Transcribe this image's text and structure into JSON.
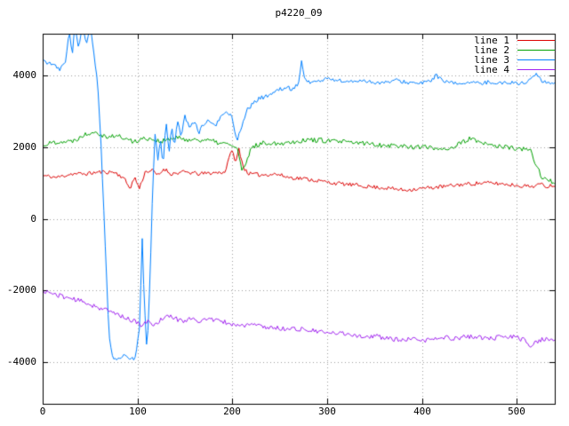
{
  "chart_data": {
    "type": "line",
    "title": "p4220_09",
    "xlabel": "",
    "ylabel": "",
    "xlim": [
      0,
      540
    ],
    "ylim": [
      -5150,
      5150
    ],
    "xticks": [
      0,
      100,
      200,
      300,
      400,
      500
    ],
    "yticks": [
      -4000,
      -2000,
      0,
      2000,
      4000
    ],
    "grid": true,
    "legend_position": "top-right",
    "background": "#ffffff",
    "border_color": "#000000",
    "grid_color": "#9e9e9e",
    "series": [
      {
        "name": "line 1",
        "color": "#dd0000",
        "noise": 55,
        "seed": 11,
        "keypoints": [
          [
            0,
            1200
          ],
          [
            15,
            1150
          ],
          [
            30,
            1250
          ],
          [
            45,
            1250
          ],
          [
            60,
            1300
          ],
          [
            75,
            1300
          ],
          [
            85,
            1150
          ],
          [
            92,
            850
          ],
          [
            97,
            1150
          ],
          [
            102,
            850
          ],
          [
            108,
            1300
          ],
          [
            115,
            1350
          ],
          [
            122,
            1200
          ],
          [
            128,
            1400
          ],
          [
            135,
            1250
          ],
          [
            150,
            1300
          ],
          [
            165,
            1250
          ],
          [
            180,
            1280
          ],
          [
            192,
            1300
          ],
          [
            197,
            1700
          ],
          [
            200,
            2000
          ],
          [
            203,
            1500
          ],
          [
            207,
            1950
          ],
          [
            212,
            1400
          ],
          [
            218,
            1250
          ],
          [
            230,
            1220
          ],
          [
            245,
            1250
          ],
          [
            260,
            1150
          ],
          [
            275,
            1120
          ],
          [
            290,
            1060
          ],
          [
            305,
            1000
          ],
          [
            320,
            960
          ],
          [
            335,
            920
          ],
          [
            350,
            880
          ],
          [
            365,
            850
          ],
          [
            380,
            800
          ],
          [
            395,
            830
          ],
          [
            410,
            870
          ],
          [
            425,
            900
          ],
          [
            440,
            950
          ],
          [
            455,
            980
          ],
          [
            470,
            1000
          ],
          [
            485,
            970
          ],
          [
            500,
            930
          ],
          [
            515,
            900
          ],
          [
            525,
            960
          ],
          [
            532,
            900
          ],
          [
            540,
            950
          ]
        ]
      },
      {
        "name": "line 2",
        "color": "#00a000",
        "noise": 70,
        "seed": 22,
        "keypoints": [
          [
            0,
            2050
          ],
          [
            15,
            2150
          ],
          [
            30,
            2150
          ],
          [
            45,
            2350
          ],
          [
            55,
            2450
          ],
          [
            65,
            2300
          ],
          [
            80,
            2300
          ],
          [
            95,
            2150
          ],
          [
            110,
            2250
          ],
          [
            125,
            2150
          ],
          [
            140,
            2250
          ],
          [
            155,
            2200
          ],
          [
            170,
            2200
          ],
          [
            185,
            2120
          ],
          [
            200,
            2050
          ],
          [
            206,
            1900
          ],
          [
            210,
            1350
          ],
          [
            214,
            1450
          ],
          [
            220,
            2000
          ],
          [
            235,
            2120
          ],
          [
            250,
            2100
          ],
          [
            265,
            2150
          ],
          [
            280,
            2200
          ],
          [
            295,
            2180
          ],
          [
            310,
            2150
          ],
          [
            325,
            2120
          ],
          [
            340,
            2100
          ],
          [
            355,
            2060
          ],
          [
            370,
            2040
          ],
          [
            385,
            2010
          ],
          [
            400,
            2000
          ],
          [
            415,
            1960
          ],
          [
            430,
            1960
          ],
          [
            445,
            2150
          ],
          [
            452,
            2260
          ],
          [
            460,
            2100
          ],
          [
            475,
            2050
          ],
          [
            490,
            1980
          ],
          [
            505,
            1940
          ],
          [
            515,
            1880
          ],
          [
            520,
            1500
          ],
          [
            527,
            1150
          ],
          [
            534,
            1050
          ],
          [
            540,
            1000
          ]
        ]
      },
      {
        "name": "line 3",
        "color": "#0080ff",
        "noise": 55,
        "seed": 33,
        "keypoints": [
          [
            0,
            4400
          ],
          [
            10,
            4300
          ],
          [
            18,
            4150
          ],
          [
            24,
            4350
          ],
          [
            28,
            5300
          ],
          [
            31,
            4500
          ],
          [
            34,
            5400
          ],
          [
            38,
            4700
          ],
          [
            42,
            5400
          ],
          [
            46,
            4800
          ],
          [
            50,
            5400
          ],
          [
            54,
            4600
          ],
          [
            58,
            3800
          ],
          [
            62,
            1800
          ],
          [
            66,
            -800
          ],
          [
            70,
            -3300
          ],
          [
            74,
            -3850
          ],
          [
            80,
            -3900
          ],
          [
            86,
            -3800
          ],
          [
            92,
            -3950
          ],
          [
            98,
            -3850
          ],
          [
            102,
            -3100
          ],
          [
            105,
            -500
          ],
          [
            107,
            -2200
          ],
          [
            110,
            -3800
          ],
          [
            113,
            -1800
          ],
          [
            116,
            800
          ],
          [
            119,
            2600
          ],
          [
            121,
            1500
          ],
          [
            124,
            2300
          ],
          [
            127,
            1400
          ],
          [
            130,
            2800
          ],
          [
            133,
            1800
          ],
          [
            136,
            2600
          ],
          [
            139,
            2000
          ],
          [
            142,
            2700
          ],
          [
            146,
            2300
          ],
          [
            150,
            2850
          ],
          [
            155,
            2500
          ],
          [
            160,
            2750
          ],
          [
            165,
            2400
          ],
          [
            170,
            2650
          ],
          [
            176,
            2750
          ],
          [
            182,
            2550
          ],
          [
            188,
            2850
          ],
          [
            194,
            3000
          ],
          [
            200,
            2800
          ],
          [
            205,
            2150
          ],
          [
            210,
            2600
          ],
          [
            216,
            3050
          ],
          [
            222,
            3200
          ],
          [
            228,
            3350
          ],
          [
            235,
            3400
          ],
          [
            242,
            3500
          ],
          [
            250,
            3600
          ],
          [
            258,
            3650
          ],
          [
            264,
            3600
          ],
          [
            270,
            3800
          ],
          [
            273,
            4400
          ],
          [
            276,
            3900
          ],
          [
            282,
            3800
          ],
          [
            290,
            3820
          ],
          [
            300,
            3900
          ],
          [
            312,
            3850
          ],
          [
            324,
            3800
          ],
          [
            336,
            3860
          ],
          [
            348,
            3800
          ],
          [
            360,
            3780
          ],
          [
            372,
            3850
          ],
          [
            384,
            3800
          ],
          [
            396,
            3760
          ],
          [
            408,
            3820
          ],
          [
            415,
            4000
          ],
          [
            422,
            3820
          ],
          [
            435,
            3760
          ],
          [
            448,
            3800
          ],
          [
            460,
            3760
          ],
          [
            472,
            3810
          ],
          [
            484,
            3770
          ],
          [
            496,
            3800
          ],
          [
            508,
            3760
          ],
          [
            515,
            3900
          ],
          [
            520,
            4060
          ],
          [
            526,
            3820
          ],
          [
            533,
            3770
          ],
          [
            540,
            3820
          ]
        ]
      },
      {
        "name": "line 4",
        "color": "#a020f0",
        "noise": 65,
        "seed": 44,
        "keypoints": [
          [
            0,
            -2000
          ],
          [
            15,
            -2120
          ],
          [
            30,
            -2220
          ],
          [
            45,
            -2330
          ],
          [
            60,
            -2480
          ],
          [
            75,
            -2620
          ],
          [
            90,
            -2780
          ],
          [
            100,
            -2900
          ],
          [
            105,
            -3000
          ],
          [
            110,
            -2850
          ],
          [
            118,
            -2950
          ],
          [
            126,
            -2780
          ],
          [
            134,
            -2700
          ],
          [
            142,
            -2800
          ],
          [
            150,
            -2850
          ],
          [
            158,
            -2730
          ],
          [
            166,
            -2880
          ],
          [
            174,
            -2780
          ],
          [
            182,
            -2820
          ],
          [
            195,
            -2900
          ],
          [
            208,
            -2980
          ],
          [
            220,
            -2940
          ],
          [
            232,
            -3000
          ],
          [
            244,
            -3040
          ],
          [
            256,
            -3060
          ],
          [
            268,
            -3060
          ],
          [
            280,
            -3100
          ],
          [
            292,
            -3150
          ],
          [
            304,
            -3190
          ],
          [
            316,
            -3180
          ],
          [
            328,
            -3230
          ],
          [
            340,
            -3290
          ],
          [
            352,
            -3270
          ],
          [
            364,
            -3330
          ],
          [
            376,
            -3380
          ],
          [
            388,
            -3360
          ],
          [
            400,
            -3390
          ],
          [
            412,
            -3350
          ],
          [
            424,
            -3310
          ],
          [
            436,
            -3330
          ],
          [
            448,
            -3270
          ],
          [
            460,
            -3300
          ],
          [
            472,
            -3340
          ],
          [
            484,
            -3290
          ],
          [
            496,
            -3280
          ],
          [
            508,
            -3380
          ],
          [
            514,
            -3520
          ],
          [
            520,
            -3450
          ],
          [
            528,
            -3340
          ],
          [
            540,
            -3400
          ]
        ]
      }
    ]
  }
}
